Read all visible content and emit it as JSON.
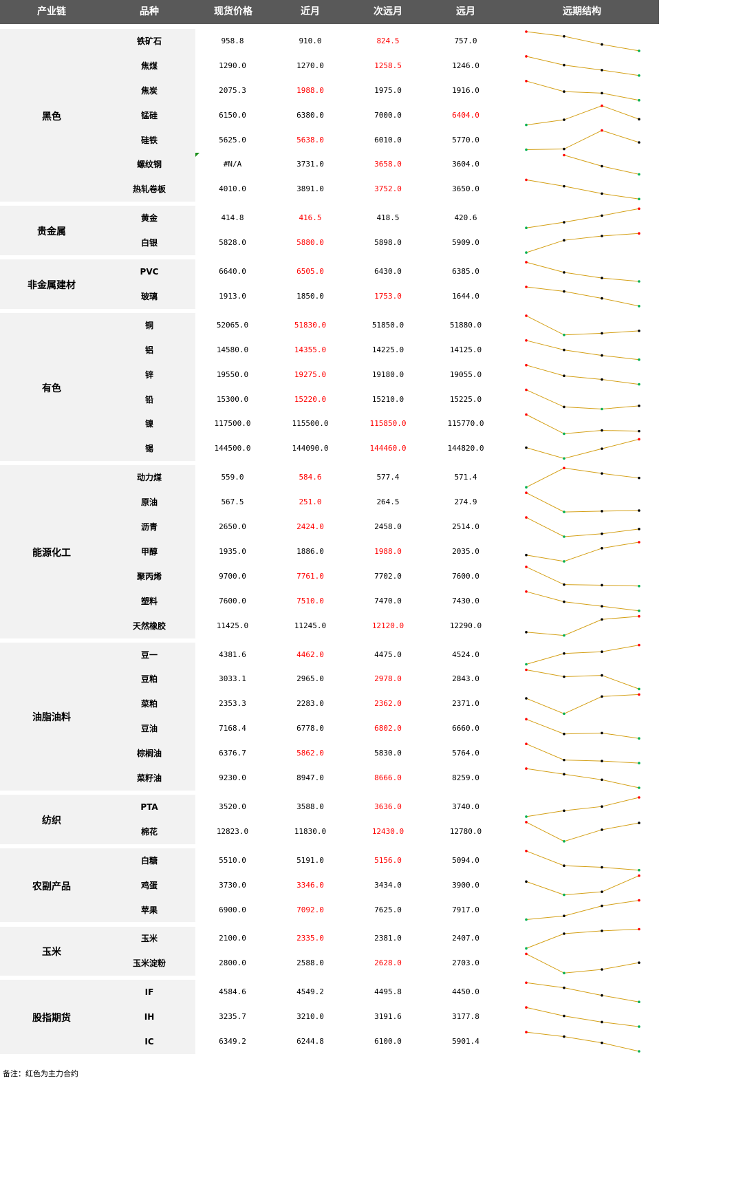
{
  "header": {
    "chain": "产业链",
    "variety": "品种",
    "spot": "现货价格",
    "near": "近月",
    "next": "次远月",
    "far": "远月",
    "structure": "远期结构"
  },
  "colors": {
    "header_bg": "#595959",
    "main_contract": "#ff0000",
    "line": "#d4a017",
    "dot_high": "#ff0000",
    "dot_low": "#00b050",
    "dot_mid": "#000000"
  },
  "groups": [
    {
      "name": "黑色",
      "rows": [
        {
          "name": "铁矿石",
          "spot": "958.8",
          "near": "910.0",
          "next": "824.5",
          "far": "757.0",
          "main": "next"
        },
        {
          "name": "焦煤",
          "spot": "1290.0",
          "near": "1270.0",
          "next": "1258.5",
          "far": "1246.0",
          "main": "next"
        },
        {
          "name": "焦炭",
          "spot": "2075.3",
          "near": "1988.0",
          "next": "1975.0",
          "far": "1916.0",
          "main": "near"
        },
        {
          "name": "锰硅",
          "spot": "6150.0",
          "near": "6380.0",
          "next": "7000.0",
          "far": "6404.0",
          "main": "far"
        },
        {
          "name": "硅铁",
          "spot": "5625.0",
          "near": "5638.0",
          "next": "6010.0",
          "far": "5770.0",
          "main": "near"
        },
        {
          "name": "螺纹钢",
          "spot": "#N/A",
          "near": "3731.0",
          "next": "3658.0",
          "far": "3604.0",
          "main": "next"
        },
        {
          "name": "热轧卷板",
          "spot": "4010.0",
          "near": "3891.0",
          "next": "3752.0",
          "far": "3650.0",
          "main": "next"
        }
      ]
    },
    {
      "name": "贵金属",
      "rows": [
        {
          "name": "黄金",
          "spot": "414.8",
          "near": "416.5",
          "next": "418.5",
          "far": "420.6",
          "main": "near"
        },
        {
          "name": "白银",
          "spot": "5828.0",
          "near": "5880.0",
          "next": "5898.0",
          "far": "5909.0",
          "main": "near"
        }
      ]
    },
    {
      "name": "非金属建材",
      "rows": [
        {
          "name": "PVC",
          "spot": "6640.0",
          "near": "6505.0",
          "next": "6430.0",
          "far": "6385.0",
          "main": "near"
        },
        {
          "name": "玻璃",
          "spot": "1913.0",
          "near": "1850.0",
          "next": "1753.0",
          "far": "1644.0",
          "main": "next"
        }
      ]
    },
    {
      "name": "有色",
      "rows": [
        {
          "name": "铜",
          "spot": "52065.0",
          "near": "51830.0",
          "next": "51850.0",
          "far": "51880.0",
          "main": "near"
        },
        {
          "name": "铝",
          "spot": "14580.0",
          "near": "14355.0",
          "next": "14225.0",
          "far": "14125.0",
          "main": "near"
        },
        {
          "name": "锌",
          "spot": "19550.0",
          "near": "19275.0",
          "next": "19180.0",
          "far": "19055.0",
          "main": "near"
        },
        {
          "name": "铅",
          "spot": "15300.0",
          "near": "15220.0",
          "next": "15210.0",
          "far": "15225.0",
          "main": "near"
        },
        {
          "name": "镍",
          "spot": "117500.0",
          "near": "115500.0",
          "next": "115850.0",
          "far": "115770.0",
          "main": "next"
        },
        {
          "name": "锡",
          "spot": "144500.0",
          "near": "144090.0",
          "next": "144460.0",
          "far": "144820.0",
          "main": "next"
        }
      ]
    },
    {
      "name": "能源化工",
      "rows": [
        {
          "name": "动力煤",
          "spot": "559.0",
          "near": "584.6",
          "next": "577.4",
          "far": "571.4",
          "main": "near"
        },
        {
          "name": "原油",
          "spot": "567.5",
          "near": "251.0",
          "next": "264.5",
          "far": "274.9",
          "main": "near"
        },
        {
          "name": "沥青",
          "spot": "2650.0",
          "near": "2424.0",
          "next": "2458.0",
          "far": "2514.0",
          "main": "near"
        },
        {
          "name": "甲醇",
          "spot": "1935.0",
          "near": "1886.0",
          "next": "1988.0",
          "far": "2035.0",
          "main": "next"
        },
        {
          "name": "聚丙烯",
          "spot": "9700.0",
          "near": "7761.0",
          "next": "7702.0",
          "far": "7600.0",
          "main": "near"
        },
        {
          "name": "塑料",
          "spot": "7600.0",
          "near": "7510.0",
          "next": "7470.0",
          "far": "7430.0",
          "main": "near"
        },
        {
          "name": "天然橡胶",
          "spot": "11425.0",
          "near": "11245.0",
          "next": "12120.0",
          "far": "12290.0",
          "main": "next"
        }
      ]
    },
    {
      "name": "油脂油料",
      "rows": [
        {
          "name": "豆一",
          "spot": "4381.6",
          "near": "4462.0",
          "next": "4475.0",
          "far": "4524.0",
          "main": "near"
        },
        {
          "name": "豆粕",
          "spot": "3033.1",
          "near": "2965.0",
          "next": "2978.0",
          "far": "2843.0",
          "main": "next"
        },
        {
          "name": "菜粕",
          "spot": "2353.3",
          "near": "2283.0",
          "next": "2362.0",
          "far": "2371.0",
          "main": "next"
        },
        {
          "name": "豆油",
          "spot": "7168.4",
          "near": "6778.0",
          "next": "6802.0",
          "far": "6660.0",
          "main": "next"
        },
        {
          "name": "棕榈油",
          "spot": "6376.7",
          "near": "5862.0",
          "next": "5830.0",
          "far": "5764.0",
          "main": "near"
        },
        {
          "name": "菜籽油",
          "spot": "9230.0",
          "near": "8947.0",
          "next": "8666.0",
          "far": "8259.0",
          "main": "next"
        }
      ]
    },
    {
      "name": "纺织",
      "rows": [
        {
          "name": "PTA",
          "spot": "3520.0",
          "near": "3588.0",
          "next": "3636.0",
          "far": "3740.0",
          "main": "next"
        },
        {
          "name": "棉花",
          "spot": "12823.0",
          "near": "11830.0",
          "next": "12430.0",
          "far": "12780.0",
          "main": "next"
        }
      ]
    },
    {
      "name": "农副产品",
      "rows": [
        {
          "name": "白糖",
          "spot": "5510.0",
          "near": "5191.0",
          "next": "5156.0",
          "far": "5094.0",
          "main": "next"
        },
        {
          "name": "鸡蛋",
          "spot": "3730.0",
          "near": "3346.0",
          "next": "3434.0",
          "far": "3900.0",
          "main": "near"
        },
        {
          "name": "苹果",
          "spot": "6900.0",
          "near": "7092.0",
          "next": "7625.0",
          "far": "7917.0",
          "main": "near"
        }
      ]
    },
    {
      "name": "玉米",
      "rows": [
        {
          "name": "玉米",
          "spot": "2100.0",
          "near": "2335.0",
          "next": "2381.0",
          "far": "2407.0",
          "main": "near"
        },
        {
          "name": "玉米淀粉",
          "spot": "2800.0",
          "near": "2588.0",
          "next": "2628.0",
          "far": "2703.0",
          "main": "next"
        }
      ]
    },
    {
      "name": "股指期货",
      "rows": [
        {
          "name": "IF",
          "spot": "4584.6",
          "near": "4549.2",
          "next": "4495.8",
          "far": "4450.0",
          "main": ""
        },
        {
          "name": "IH",
          "spot": "3235.7",
          "near": "3210.0",
          "next": "3191.6",
          "far": "3177.8",
          "main": ""
        },
        {
          "name": "IC",
          "spot": "6349.2",
          "near": "6244.8",
          "next": "6100.0",
          "far": "5901.4",
          "main": ""
        }
      ]
    }
  ],
  "note": "备注：红色为主力合约"
}
